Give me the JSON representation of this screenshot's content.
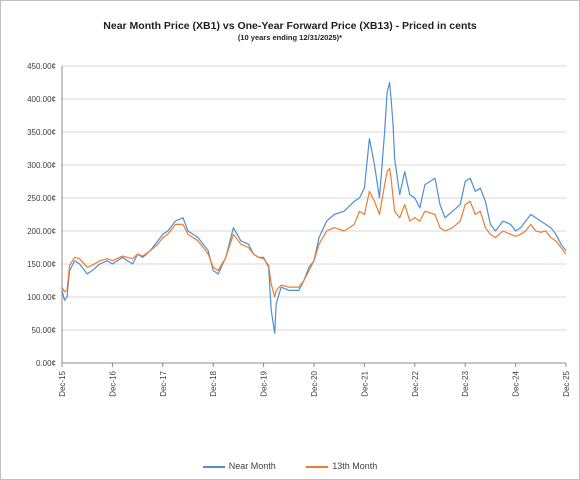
{
  "chart_data": {
    "type": "line",
    "title": "Near Month Price (XB1) vs One-Year Forward Price (XB13) - Priced in cents",
    "subtitle": "(10 years ending 12/31/2025)*",
    "xlabel": "",
    "ylabel": "",
    "ylim": [
      0,
      450
    ],
    "y_ticks": [
      "0.00¢",
      "50.00¢",
      "100.00¢",
      "150.00¢",
      "200.00¢",
      "250.00¢",
      "300.00¢",
      "350.00¢",
      "400.00¢",
      "450.00¢"
    ],
    "x_ticks": [
      "Dec-15",
      "Dec-16",
      "Dec-17",
      "Dec-18",
      "Dec-19",
      "Dec-20",
      "Dec-21",
      "Dec-22",
      "Dec-23",
      "Dec-24",
      "Dec-25"
    ],
    "grid": "horizontal",
    "legend_position": "bottom",
    "x_unit": "years since Dec-15",
    "series": [
      {
        "name": "Near Month",
        "color": "#4f8fd0",
        "x": [
          0,
          0.05,
          0.1,
          0.15,
          0.25,
          0.35,
          0.5,
          0.6,
          0.75,
          0.9,
          1.0,
          1.2,
          1.4,
          1.5,
          1.6,
          1.75,
          1.9,
          2.0,
          2.1,
          2.25,
          2.4,
          2.5,
          2.7,
          2.9,
          3.0,
          3.1,
          3.25,
          3.4,
          3.55,
          3.7,
          3.8,
          3.9,
          4.0,
          4.1,
          4.15,
          4.22,
          4.25,
          4.35,
          4.5,
          4.7,
          4.8,
          4.9,
          5.0,
          5.1,
          5.25,
          5.4,
          5.6,
          5.8,
          5.9,
          6.0,
          6.1,
          6.2,
          6.3,
          6.4,
          6.45,
          6.5,
          6.53,
          6.57,
          6.6,
          6.7,
          6.8,
          6.9,
          7.0,
          7.1,
          7.2,
          7.4,
          7.5,
          7.6,
          7.75,
          7.9,
          8.0,
          8.1,
          8.2,
          8.3,
          8.4,
          8.5,
          8.6,
          8.75,
          8.9,
          9.0,
          9.1,
          9.2,
          9.3,
          9.4,
          9.5,
          9.6,
          9.7,
          9.8,
          9.9,
          10.0
        ],
        "values": [
          110,
          95,
          100,
          140,
          155,
          150,
          135,
          140,
          150,
          155,
          150,
          160,
          150,
          165,
          160,
          170,
          185,
          195,
          200,
          215,
          220,
          200,
          190,
          170,
          140,
          135,
          160,
          205,
          185,
          180,
          165,
          160,
          160,
          145,
          80,
          45,
          90,
          115,
          110,
          110,
          125,
          145,
          155,
          190,
          215,
          225,
          230,
          245,
          250,
          265,
          340,
          300,
          250,
          350,
          410,
          425,
          400,
          360,
          310,
          255,
          290,
          255,
          250,
          235,
          270,
          280,
          240,
          220,
          230,
          240,
          275,
          280,
          260,
          265,
          245,
          210,
          200,
          215,
          210,
          200,
          205,
          215,
          225,
          220,
          215,
          210,
          205,
          195,
          180,
          170
        ]
      },
      {
        "name": "13th Month",
        "color": "#ed7d31",
        "x": [
          0,
          0.05,
          0.1,
          0.15,
          0.25,
          0.35,
          0.5,
          0.6,
          0.75,
          0.9,
          1.0,
          1.2,
          1.4,
          1.5,
          1.6,
          1.75,
          1.9,
          2.0,
          2.1,
          2.25,
          2.4,
          2.5,
          2.7,
          2.9,
          3.0,
          3.1,
          3.25,
          3.4,
          3.55,
          3.7,
          3.8,
          3.9,
          4.0,
          4.1,
          4.15,
          4.22,
          4.25,
          4.35,
          4.5,
          4.7,
          4.8,
          4.9,
          5.0,
          5.1,
          5.25,
          5.4,
          5.6,
          5.8,
          5.9,
          6.0,
          6.1,
          6.2,
          6.3,
          6.4,
          6.45,
          6.5,
          6.53,
          6.57,
          6.6,
          6.7,
          6.8,
          6.9,
          7.0,
          7.1,
          7.2,
          7.4,
          7.5,
          7.6,
          7.75,
          7.9,
          8.0,
          8.1,
          8.2,
          8.3,
          8.4,
          8.5,
          8.6,
          8.75,
          8.9,
          9.0,
          9.1,
          9.2,
          9.3,
          9.4,
          9.5,
          9.6,
          9.7,
          9.8,
          9.9,
          10.0
        ],
        "values": [
          115,
          108,
          110,
          148,
          160,
          158,
          145,
          148,
          155,
          158,
          155,
          162,
          158,
          165,
          162,
          170,
          180,
          190,
          195,
          210,
          210,
          195,
          185,
          165,
          145,
          140,
          160,
          195,
          180,
          175,
          165,
          160,
          158,
          148,
          120,
          100,
          110,
          118,
          115,
          115,
          125,
          140,
          155,
          180,
          200,
          205,
          200,
          210,
          230,
          225,
          260,
          245,
          225,
          270,
          290,
          295,
          280,
          250,
          230,
          220,
          240,
          215,
          220,
          215,
          230,
          225,
          205,
          200,
          205,
          215,
          240,
          245,
          225,
          230,
          205,
          195,
          190,
          200,
          195,
          192,
          195,
          200,
          210,
          200,
          198,
          200,
          190,
          185,
          175,
          165
        ]
      }
    ]
  }
}
